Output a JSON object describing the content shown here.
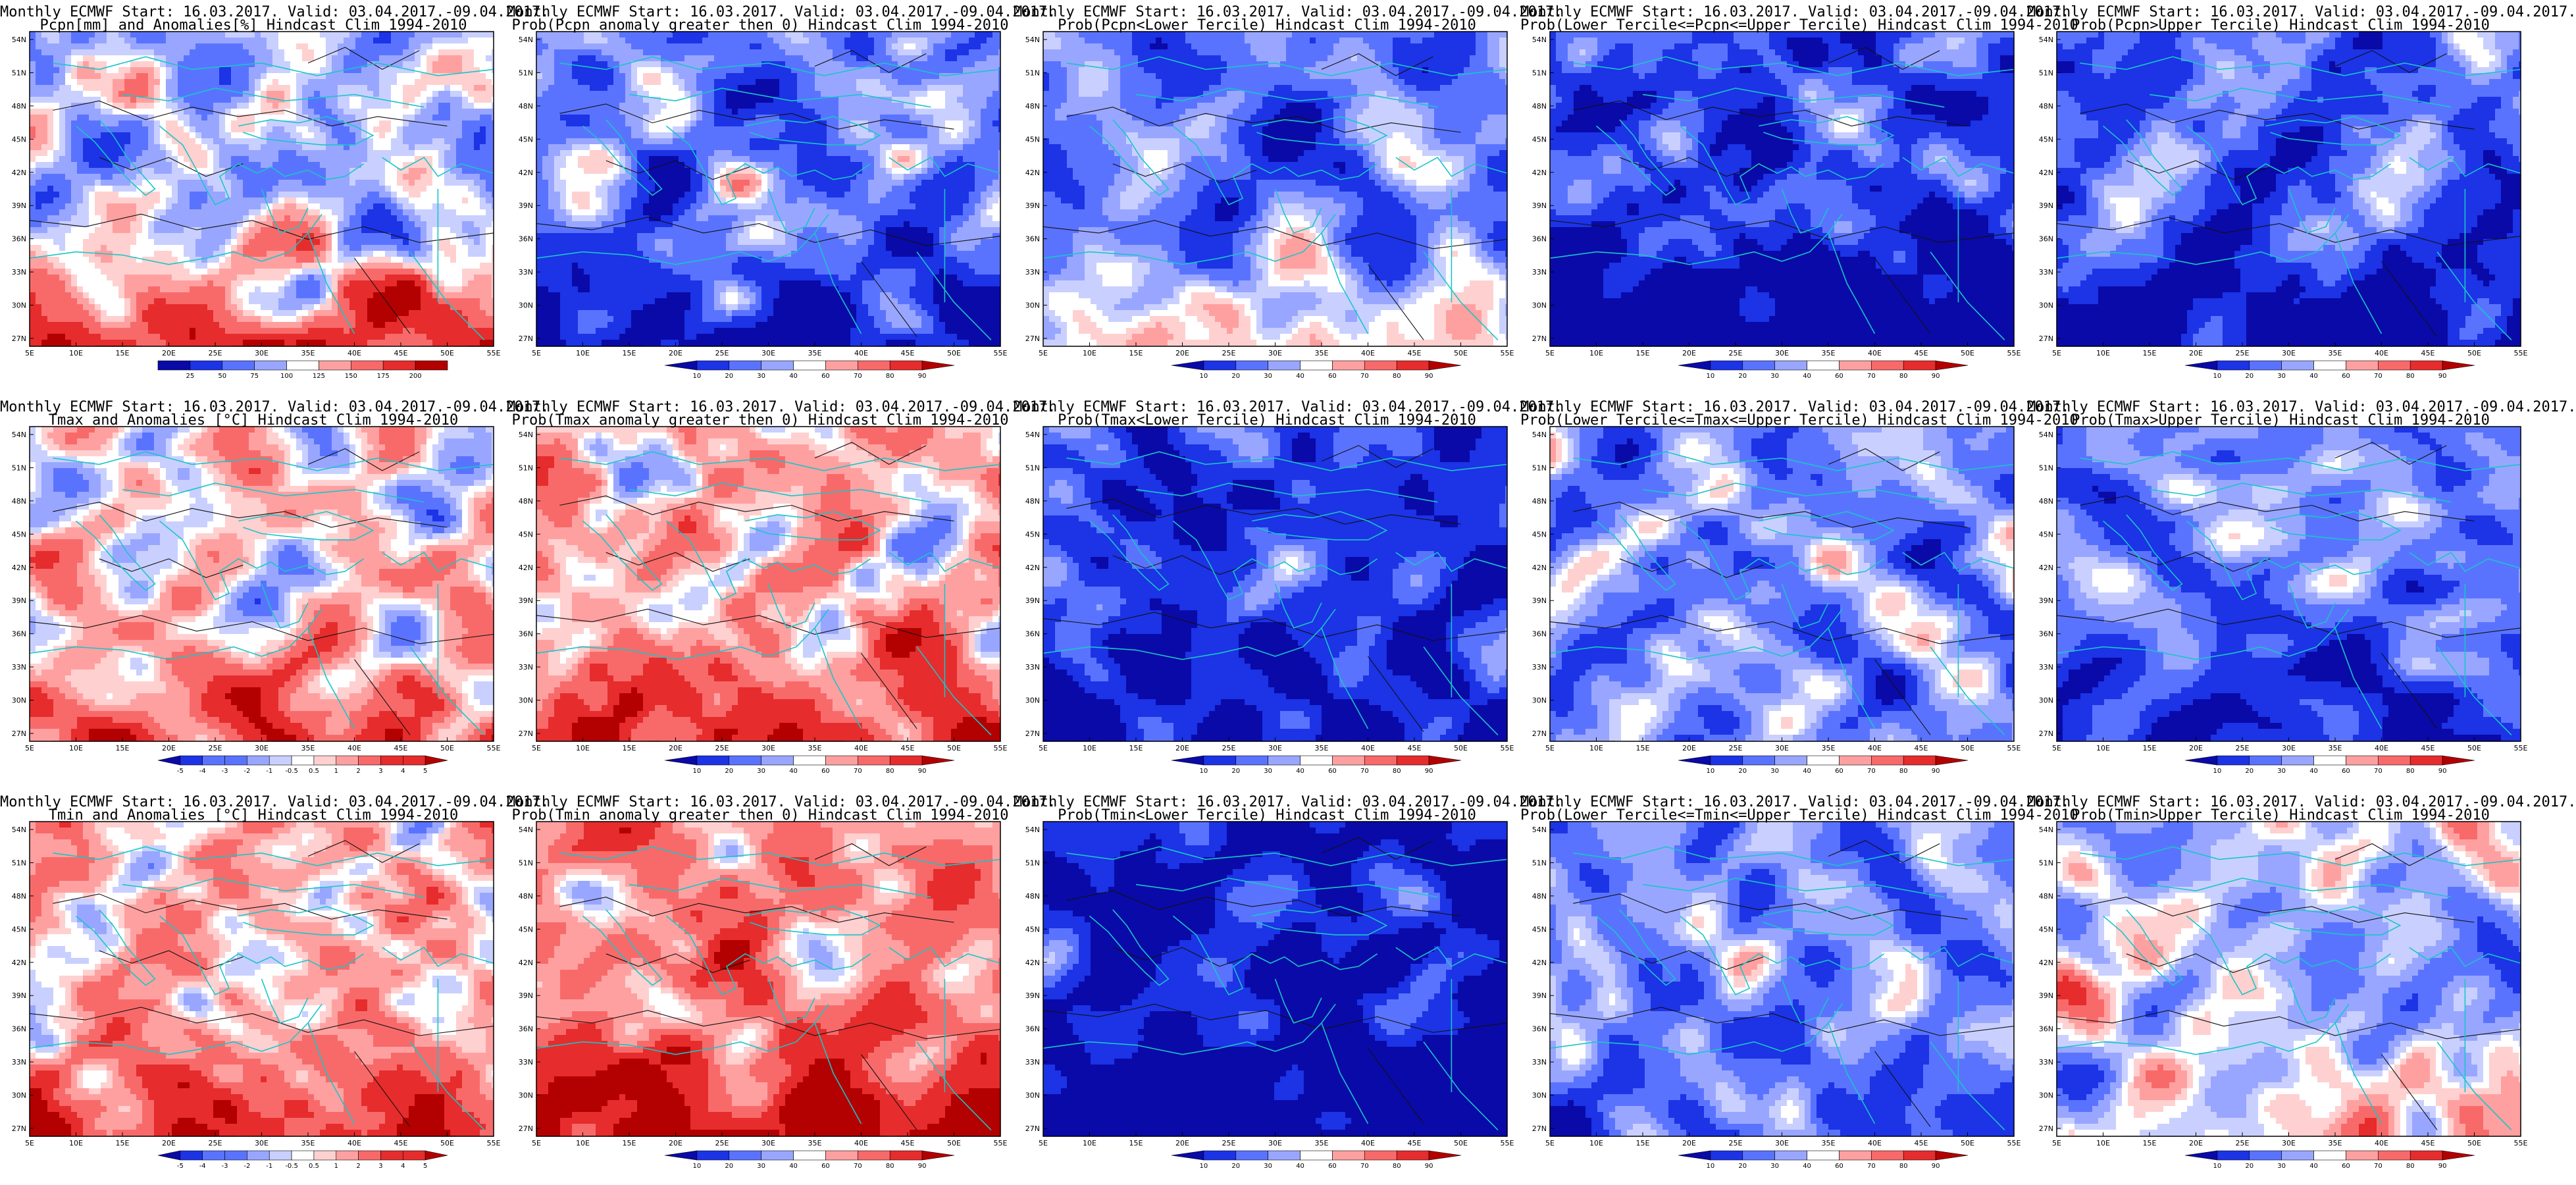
{
  "figure": {
    "lat_labels": [
      "54N",
      "51N",
      "48N",
      "45N",
      "42N",
      "39N",
      "36N",
      "33N",
      "30N",
      "27N"
    ],
    "lon_labels": [
      "5E",
      "10E",
      "15E",
      "20E",
      "25E",
      "30E",
      "35E",
      "40E",
      "45E",
      "50E",
      "55E"
    ]
  },
  "colors": {
    "blues": [
      "#0a0aa8",
      "#1c33e6",
      "#5a73ff",
      "#99a6ff",
      "#c9d0ff"
    ],
    "white": "#ffffff",
    "reds": [
      "#ffd0d0",
      "#ffa0a0",
      "#f86a6a",
      "#e62c2c",
      "#b30000"
    ],
    "coast": "#19c5c8",
    "contour": "#111111"
  },
  "panels": [
    {
      "title1": "Monthly ECMWF Start: 16.03.2017. Valid: 03.04.2017.-09.04.2017.",
      "title2": "Pcpn[mm] and Anomalies[%] Hindcast Clim 1994-2010",
      "scale": "blue-red",
      "bias": -0.15,
      "south_bias": 0.8,
      "cbar": {
        "ticks": [
          "25",
          "50",
          "75",
          "100",
          "125",
          "150",
          "175",
          "200"
        ],
        "arrows": false
      }
    },
    {
      "title1": "Monthly ECMWF Start: 16.03.2017. Valid: 03.04.2017.-09.04.2017.",
      "title2": "Prob(Pcpn anomaly greater then 0) Hindcast Clim 1994-2010",
      "scale": "blue-red",
      "bias": -0.35,
      "south_bias": -0.5,
      "cbar": {
        "ticks": [
          "10",
          "20",
          "30",
          "40",
          "60",
          "70",
          "80",
          "90"
        ],
        "arrows": true
      }
    },
    {
      "title1": "Monthly ECMWF Start: 16.03.2017. Valid: 03.04.2017.-09.04.2017.",
      "title2": "Prob(Pcpn<Lower Tercile) Hindcast Clim 1994-2010",
      "scale": "blue-red",
      "bias": -0.4,
      "south_bias": 0.5,
      "cbar": {
        "ticks": [
          "10",
          "20",
          "30",
          "40",
          "60",
          "70",
          "80",
          "90"
        ],
        "arrows": true
      }
    },
    {
      "title1": "Monthly ECMWF Start: 16.03.2017. Valid: 03.04.2017.-09.04.2017.",
      "title2": "Prob(Lower Tercile<=Pcpn<=Upper Tercile) Hindcast Clim 1994-2010",
      "scale": "blue-red",
      "bias": -0.55,
      "south_bias": -0.9,
      "cbar": {
        "ticks": [
          "10",
          "20",
          "30",
          "40",
          "60",
          "70",
          "80",
          "90"
        ],
        "arrows": true
      }
    },
    {
      "title1": "Monthly ECMWF Start: 16.03.2017. Valid: 03.04.2017.-09.04.2017.",
      "title2": "Prob(Pcpn>Upper Tercile) Hindcast Clim 1994-2010",
      "scale": "blue-red",
      "bias": -0.45,
      "south_bias": -0.6,
      "cbar": {
        "ticks": [
          "10",
          "20",
          "30",
          "40",
          "60",
          "70",
          "80",
          "90"
        ],
        "arrows": true
      }
    },
    {
      "title1": "Monthly ECMWF Start: 16.03.2017. Valid: 03.04.2017.-09.04.2017.",
      "title2": "Tmax and Anomalies [°C] Hindcast Clim 1994-2010",
      "scale": "blue-red",
      "bias": 0.05,
      "south_bias": 0.5,
      "cbar": {
        "ticks": [
          "-5",
          "-4",
          "-3",
          "-2",
          "-1",
          "-0.5",
          "0.5",
          "1",
          "2",
          "3",
          "4",
          "5"
        ],
        "arrows": true
      }
    },
    {
      "title1": "Monthly ECMWF Start: 16.03.2017. Valid: 03.04.2017.-09.04.2017.",
      "title2": "Prob(Tmax anomaly greater then 0) Hindcast Clim 1994-2010",
      "scale": "blue-red",
      "bias": 0.15,
      "south_bias": 0.5,
      "cbar": {
        "ticks": [
          "10",
          "20",
          "30",
          "40",
          "60",
          "70",
          "80",
          "90"
        ],
        "arrows": true
      }
    },
    {
      "title1": "Monthly ECMWF Start: 16.03.2017. Valid: 03.04.2017.-09.04.2017.",
      "title2": "Prob(Tmax<Lower Tercile) Hindcast Clim 1994-2010",
      "scale": "blue-red",
      "bias": -0.6,
      "south_bias": -0.3,
      "cbar": {
        "ticks": [
          "10",
          "20",
          "30",
          "40",
          "60",
          "70",
          "80",
          "90"
        ],
        "arrows": true
      }
    },
    {
      "title1": "Monthly ECMWF Start: 16.03.2017. Valid: 03.04.2017.-09.04.2017.",
      "title2": "Prob(Lower Tercile<=Tmax<=Upper Tercile) Hindcast Clim 1994-2010",
      "scale": "blue-red",
      "bias": -0.3,
      "south_bias": 0,
      "cbar": {
        "ticks": [
          "10",
          "20",
          "30",
          "40",
          "60",
          "70",
          "80",
          "90"
        ],
        "arrows": true
      }
    },
    {
      "title1": "Monthly ECMWF Start: 16.03.2017. Valid: 03.04.2017.-09.04.2017.",
      "title2": "Prob(Tmax>Upper Tercile) Hindcast Clim 1994-2010",
      "scale": "blue-red",
      "bias": -0.35,
      "south_bias": -0.4,
      "cbar": {
        "ticks": [
          "10",
          "20",
          "30",
          "40",
          "60",
          "70",
          "80",
          "90"
        ],
        "arrows": true
      }
    },
    {
      "title1": "Monthly ECMWF Start: 16.03.2017. Valid: 03.04.2017.-09.04.2017.",
      "title2": "Tmin and Anomalies [°C] Hindcast Clim 1994-2010",
      "scale": "blue-red",
      "bias": 0.15,
      "south_bias": 0.5,
      "cbar": {
        "ticks": [
          "-5",
          "-4",
          "-3",
          "-2",
          "-1",
          "-0.5",
          "0.5",
          "1",
          "2",
          "3",
          "4",
          "5"
        ],
        "arrows": true
      }
    },
    {
      "title1": "Monthly ECMWF Start: 16.03.2017. Valid: 03.04.2017.-09.04.2017.",
      "title2": "Prob(Tmin anomaly greater then 0) Hindcast Clim 1994-2010",
      "scale": "blue-red",
      "bias": 0.3,
      "south_bias": 0.6,
      "cbar": {
        "ticks": [
          "10",
          "20",
          "30",
          "40",
          "60",
          "70",
          "80",
          "90"
        ],
        "arrows": true
      }
    },
    {
      "title1": "Monthly ECMWF Start: 16.03.2017. Valid: 03.04.2017.-09.04.2017.",
      "title2": "Prob(Tmin<Lower Tercile) Hindcast Clim 1994-2010",
      "scale": "blue-red",
      "bias": -0.75,
      "south_bias": -0.4,
      "cbar": {
        "ticks": [
          "10",
          "20",
          "30",
          "40",
          "60",
          "70",
          "80",
          "90"
        ],
        "arrows": true
      }
    },
    {
      "title1": "Monthly ECMWF Start: 16.03.2017. Valid: 03.04.2017.-09.04.2017.",
      "title2": "Prob(Lower Tercile<=Tmin<=Upper Tercile) Hindcast Clim 1994-2010",
      "scale": "blue-red",
      "bias": -0.3,
      "south_bias": -0.2,
      "cbar": {
        "ticks": [
          "10",
          "20",
          "30",
          "40",
          "60",
          "70",
          "80",
          "90"
        ],
        "arrows": true
      }
    },
    {
      "title1": "Monthly ECMWF Start: 16.03.2017. Valid: 03.04.2017.-09.04.2017.",
      "title2": "Prob(Tmin>Upper Tercile) Hindcast Clim 1994-2010",
      "scale": "blue-red",
      "bias": -0.15,
      "south_bias": 0.2,
      "cbar": {
        "ticks": [
          "10",
          "20",
          "30",
          "40",
          "60",
          "70",
          "80",
          "90"
        ],
        "arrows": true
      }
    }
  ]
}
